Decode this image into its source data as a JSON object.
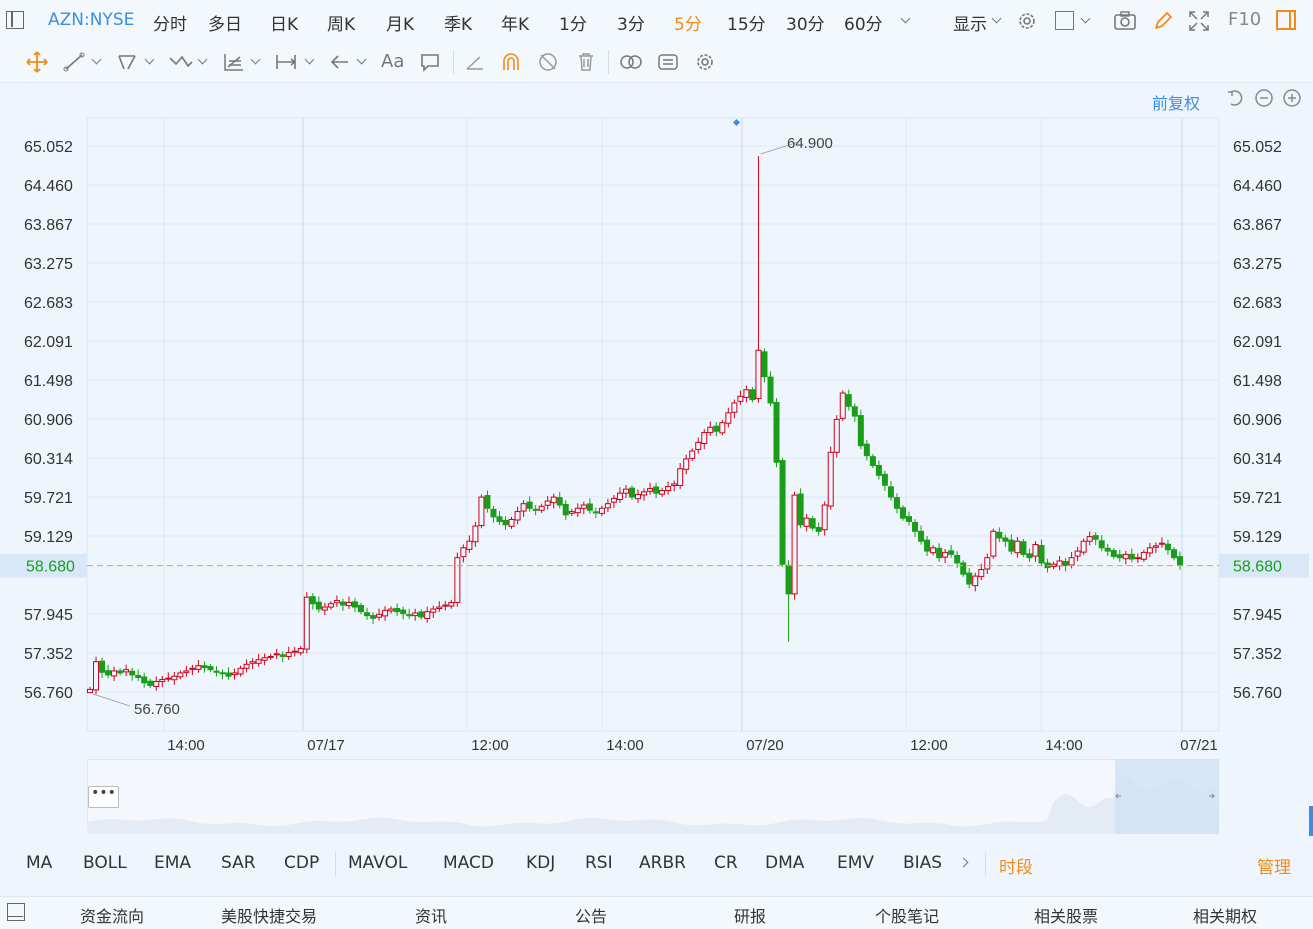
{
  "toolbar": {
    "ticker": "AZN:NYSE",
    "periods": [
      "分时",
      "多日",
      "日K",
      "周K",
      "月K",
      "季K",
      "年K",
      "1分",
      "3分",
      "5分",
      "15分",
      "30分",
      "60分"
    ],
    "active_period": "5分",
    "display_label": "显示",
    "f10_label": "F10"
  },
  "draw_tools": {
    "text_tool_label": "Aa"
  },
  "chart_controls": {
    "adjust_label": "前复权"
  },
  "colors": {
    "up": "#d0021b",
    "down": "#1a9e1a",
    "accent": "#3a8ee6",
    "active": "#f08c1a"
  },
  "chart_data": {
    "type": "candlestick",
    "y_ticks": [
      "65.052",
      "64.460",
      "63.867",
      "63.275",
      "62.683",
      "62.091",
      "61.498",
      "60.906",
      "60.314",
      "59.721",
      "59.129",
      "57.945",
      "57.352",
      "56.760"
    ],
    "x_ticks": [
      "14:00",
      "07/17",
      "12:00",
      "14:00",
      "07/20",
      "12:00",
      "14:00",
      "07/21"
    ],
    "ylim": [
      56.34,
      65.46
    ],
    "current_price": "58.680",
    "high_label": "64.900",
    "low_label": "56.760",
    "high": 64.9,
    "low": 56.76,
    "pattern_close": [
      56.8,
      57.22,
      57.06,
      57.02,
      57.08,
      57.05,
      57.1,
      57.02,
      56.98,
      56.9,
      56.86,
      56.92,
      56.95,
      56.97,
      57.0,
      57.05,
      57.08,
      57.12,
      57.16,
      57.13,
      57.1,
      57.06,
      57.04,
      57.0,
      57.05,
      57.12,
      57.18,
      57.22,
      57.25,
      57.28,
      57.3,
      57.34,
      57.3,
      57.36,
      57.38,
      57.42,
      58.2,
      58.1,
      58.02,
      58.05,
      58.1,
      58.15,
      58.08,
      58.12,
      58.05,
      57.98,
      57.92,
      57.88,
      57.94,
      58.0,
      58.02,
      57.98,
      57.95,
      57.92,
      57.96,
      57.9,
      57.98,
      58.02,
      58.05,
      58.08,
      58.12,
      58.8,
      58.95,
      59.05,
      59.28,
      59.72,
      59.55,
      59.42,
      59.35,
      59.3,
      59.38,
      59.5,
      59.62,
      59.55,
      59.52,
      59.58,
      59.66,
      59.72,
      59.6,
      59.45,
      59.5,
      59.55,
      59.6,
      59.52,
      59.48,
      59.55,
      59.62,
      59.7,
      59.78,
      59.84,
      59.72,
      59.76,
      59.8,
      59.85,
      59.78,
      59.82,
      59.88,
      59.92,
      60.15,
      60.3,
      60.42,
      60.55,
      60.7,
      60.78,
      60.72,
      60.85,
      61.0,
      61.15,
      61.25,
      61.35,
      61.2,
      61.95,
      61.55,
      61.15,
      60.25,
      58.7,
      58.25,
      59.75,
      59.3,
      59.4,
      59.25,
      59.2,
      59.6,
      60.4,
      60.9,
      61.3,
      61.1,
      60.95,
      60.5,
      60.35,
      60.2,
      60.05,
      59.9,
      59.72,
      59.55,
      59.4,
      59.35,
      59.2,
      59.05,
      58.9,
      58.95,
      58.8,
      58.88,
      58.85,
      58.72,
      58.55,
      58.4,
      58.52,
      58.62,
      58.8,
      59.2,
      59.1,
      59.05,
      58.9,
      59.05,
      58.85,
      58.8,
      59.0,
      58.72,
      58.65,
      58.7,
      58.75,
      58.68,
      58.8,
      58.9,
      59.05,
      59.12,
      59.08,
      58.95,
      58.9,
      58.82,
      58.8,
      58.85,
      58.78,
      58.8,
      58.88,
      58.95,
      58.98,
      59.02,
      58.92,
      58.8,
      58.68
    ]
  },
  "indicators": [
    "MA",
    "BOLL",
    "EMA",
    "SAR",
    "CDP",
    "MAVOL",
    "MACD",
    "KDJ",
    "RSI",
    "ARBR",
    "CR",
    "DMA",
    "EMV",
    "BIAS"
  ],
  "indicator_extra": "时段",
  "manage_label": "管理",
  "bottom_tabs": [
    "资金流向",
    "美股快捷交易",
    "资讯",
    "公告",
    "研报",
    "个股笔记",
    "相关股票",
    "相关期权"
  ]
}
